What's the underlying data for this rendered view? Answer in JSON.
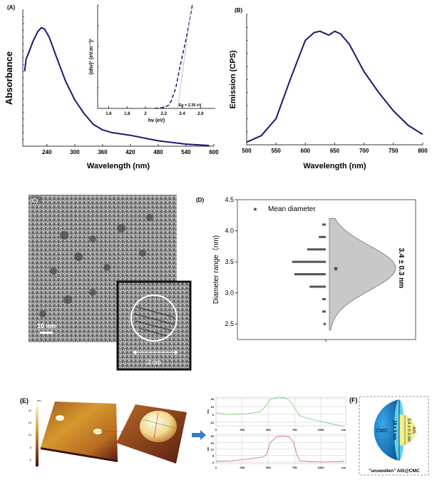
{
  "panels": {
    "a_label": "(A)",
    "b_label": "(B)",
    "c_label": "(C)",
    "d_label": "(D)",
    "e_label": "(E)",
    "f_label": "(F)"
  },
  "tem": {
    "scale_bar": "10 nm",
    "inset_scale": "3 nm"
  },
  "afm": {
    "colorbar_unit": "nm",
    "colorbar_ticks": [
      "20",
      "15",
      "10",
      "5",
      "0"
    ]
  },
  "schematic": {
    "shell_label": "CMC",
    "shell_size": "19 ± 3 nm",
    "core_label": "AIS",
    "core_size": "3.4 ± 0.3 nm",
    "caption": "\"unswollen\" AIS@CMC",
    "colors": {
      "shell": "#1f8fd6",
      "shell_face": "#5fd3f0",
      "core": "#f3f08a"
    }
  },
  "chart_data": [
    {
      "id": "A",
      "type": "line",
      "xlabel": "Wavelength (nm)",
      "ylabel": "Absorbance",
      "xlim": [
        188,
        600
      ],
      "ylim": [
        0,
        1
      ],
      "xticks": [
        240,
        300,
        360,
        420,
        480,
        540,
        600
      ],
      "color": "#1a1a6e",
      "x": [
        192,
        195,
        200,
        210,
        220,
        228,
        235,
        245,
        260,
        280,
        300,
        320,
        340,
        360,
        380,
        420,
        480,
        540,
        590
      ],
      "y": [
        0.55,
        0.64,
        0.68,
        0.77,
        0.84,
        0.87,
        0.86,
        0.8,
        0.66,
        0.48,
        0.34,
        0.24,
        0.16,
        0.12,
        0.1,
        0.08,
        0.04,
        0.015,
        0.005
      ]
    },
    {
      "id": "A-inset",
      "type": "line",
      "xlabel": "hν (eV)",
      "ylabel": "(αhν)² (eV.m⁻¹)²",
      "xlim": [
        1.48,
        2.76
      ],
      "ylim": [
        0,
        1
      ],
      "xticks": [
        1.6,
        1.8,
        2.0,
        2.2,
        2.4,
        2.6
      ],
      "color": "#1a1a6e",
      "dashed": true,
      "x": [
        2.1,
        2.15,
        2.2,
        2.25,
        2.28,
        2.33,
        2.38,
        2.43,
        2.47,
        2.51
      ],
      "y": [
        0.0,
        0.005,
        0.01,
        0.03,
        0.07,
        0.2,
        0.42,
        0.62,
        0.8,
        1.0
      ],
      "annotation": "Eg = 2.35 eV",
      "tangent_x0": 2.35
    },
    {
      "id": "B",
      "type": "line",
      "xlabel": "Wavelength (nm)",
      "ylabel": "Emission (CPS)",
      "xlim": [
        500,
        800
      ],
      "ylim": [
        0,
        1
      ],
      "xticks": [
        500,
        550,
        600,
        650,
        700,
        750,
        800
      ],
      "color": "#1a1a6e",
      "x": [
        500,
        525,
        550,
        575,
        600,
        615,
        625,
        640,
        650,
        660,
        675,
        700,
        725,
        750,
        775,
        800
      ],
      "y": [
        0.02,
        0.07,
        0.2,
        0.51,
        0.8,
        0.86,
        0.87,
        0.84,
        0.87,
        0.85,
        0.77,
        0.56,
        0.4,
        0.26,
        0.15,
        0.08
      ]
    },
    {
      "id": "D",
      "type": "bar",
      "orientation": "horizontal",
      "ylabel": "Diameter range（nm)",
      "ylim": [
        2.25,
        4.5
      ],
      "yticks": [
        "2.5",
        "3.0",
        "3.5",
        "4.0",
        "4.5"
      ],
      "categories": [
        2.5,
        2.7,
        2.9,
        3.1,
        3.3,
        3.5,
        3.7,
        3.9,
        4.1
      ],
      "values": [
        2,
        3,
        3,
        14,
        27,
        29,
        16,
        6,
        3
      ],
      "distribution": {
        "mean": 3.4,
        "sd": 0.3,
        "fill": "#c8c8c8"
      },
      "legend": "Mean diameter",
      "legend_position": "top-left",
      "annotation": "3.4 ± 0.3 nm"
    },
    {
      "id": "E-profile-1",
      "type": "line",
      "ylabel": "nm",
      "xunit": "nm",
      "xlim": [
        0,
        1238
      ],
      "ylim": [
        -14.5,
        21.8
      ],
      "xticks": [
        "0",
        "250",
        "500",
        "750",
        "1000"
      ],
      "yticks": [
        "20",
        "10",
        "0",
        "-10"
      ],
      "grid": true,
      "color": "#7cc47c",
      "x": [
        0,
        100,
        300,
        420,
        470,
        520,
        600,
        680,
        730,
        770,
        800,
        900,
        1000,
        1100,
        1220
      ],
      "y": [
        2,
        0,
        1,
        3,
        10,
        19,
        22,
        20,
        13,
        4,
        -2,
        -6,
        -9,
        -12,
        -15
      ]
    },
    {
      "id": "E-profile-2",
      "type": "line",
      "ylabel": "nm",
      "xunit": "nm",
      "xlim": [
        0,
        1238
      ],
      "ylim": [
        3.1,
        20.9
      ],
      "xticks": [
        "0",
        "250",
        "500",
        "750",
        "1000"
      ],
      "yticks": [
        "20",
        "16",
        "12",
        "8",
        "4"
      ],
      "grid": true,
      "color": "#d06070",
      "x": [
        0,
        150,
        250,
        350,
        450,
        480,
        520,
        580,
        640,
        700,
        740,
        770,
        800,
        900,
        1000,
        1100,
        1220
      ],
      "y": [
        4.5,
        4.8,
        5.5,
        6.2,
        7.2,
        8.5,
        16,
        19.5,
        20,
        19.3,
        16,
        9,
        4.8,
        4.3,
        4,
        4.2,
        4.5
      ]
    }
  ]
}
